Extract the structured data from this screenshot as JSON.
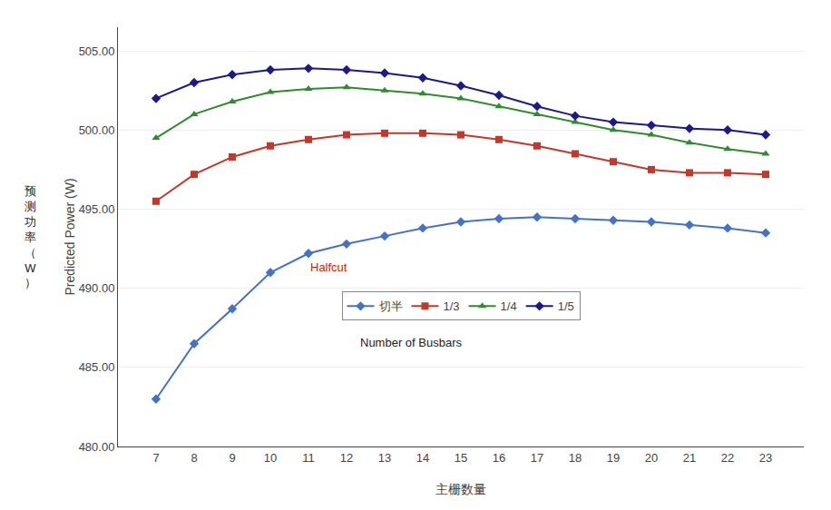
{
  "chart_data": {
    "type": "line",
    "x": [
      7,
      8,
      9,
      10,
      11,
      12,
      13,
      14,
      15,
      16,
      17,
      18,
      19,
      20,
      21,
      22,
      23
    ],
    "series": [
      {
        "name": "切半",
        "color": "#4472c4",
        "marker": "diamond",
        "values": [
          483.0,
          486.5,
          488.7,
          491.0,
          492.2,
          492.8,
          493.3,
          493.8,
          494.2,
          494.4,
          494.5,
          494.4,
          494.3,
          494.2,
          494.0,
          493.8,
          493.5
        ]
      },
      {
        "name": "1/3",
        "color": "#c0392b",
        "marker": "square",
        "values": [
          495.5,
          497.2,
          498.3,
          499.0,
          499.4,
          499.7,
          499.8,
          499.8,
          499.7,
          499.4,
          499.0,
          498.5,
          498.0,
          497.5,
          497.3,
          497.3,
          497.2
        ]
      },
      {
        "name": "1/4",
        "color": "#2e8b2e",
        "marker": "triangle-up",
        "values": [
          499.5,
          501.0,
          501.8,
          502.4,
          502.6,
          502.7,
          502.5,
          502.3,
          502.0,
          501.5,
          501.0,
          500.5,
          500.0,
          499.7,
          499.2,
          498.8,
          498.5
        ]
      },
      {
        "name": "1/5",
        "color": "#1a1a8c",
        "marker": "diamond",
        "values": [
          502.0,
          503.0,
          503.5,
          503.8,
          503.9,
          503.8,
          503.6,
          503.3,
          502.8,
          502.2,
          501.5,
          500.9,
          500.5,
          500.3,
          500.1,
          500.0,
          499.7
        ]
      }
    ],
    "xlabel": "主栅数量",
    "ylabel": "Predicted Power (W)",
    "ylabel_secondary": "预测功率（W）",
    "annotations": [
      {
        "text": "Halfcut",
        "x": 11.0,
        "y": 490.8,
        "color": "#cc2200"
      },
      {
        "text": "Number of Busbars",
        "x": 12.3,
        "y": 486.0,
        "color": "#222222"
      }
    ],
    "xlim": [
      6,
      24
    ],
    "xticks": [
      7,
      8,
      9,
      10,
      11,
      12,
      13,
      14,
      15,
      16,
      17,
      18,
      19,
      20,
      21,
      22,
      23
    ],
    "ylim": [
      480.0,
      506.5
    ],
    "yticks": [
      {
        "value": 480.0,
        "label": "480.00"
      },
      {
        "value": 485.0,
        "label": "485.00"
      },
      {
        "value": 490.0,
        "label": "490.00"
      },
      {
        "value": 495.0,
        "label": "495.00"
      },
      {
        "value": 500.0,
        "label": "500.00"
      },
      {
        "value": 505.0,
        "label": "505.00"
      }
    ],
    "grid": "y",
    "legend": "lower center"
  }
}
